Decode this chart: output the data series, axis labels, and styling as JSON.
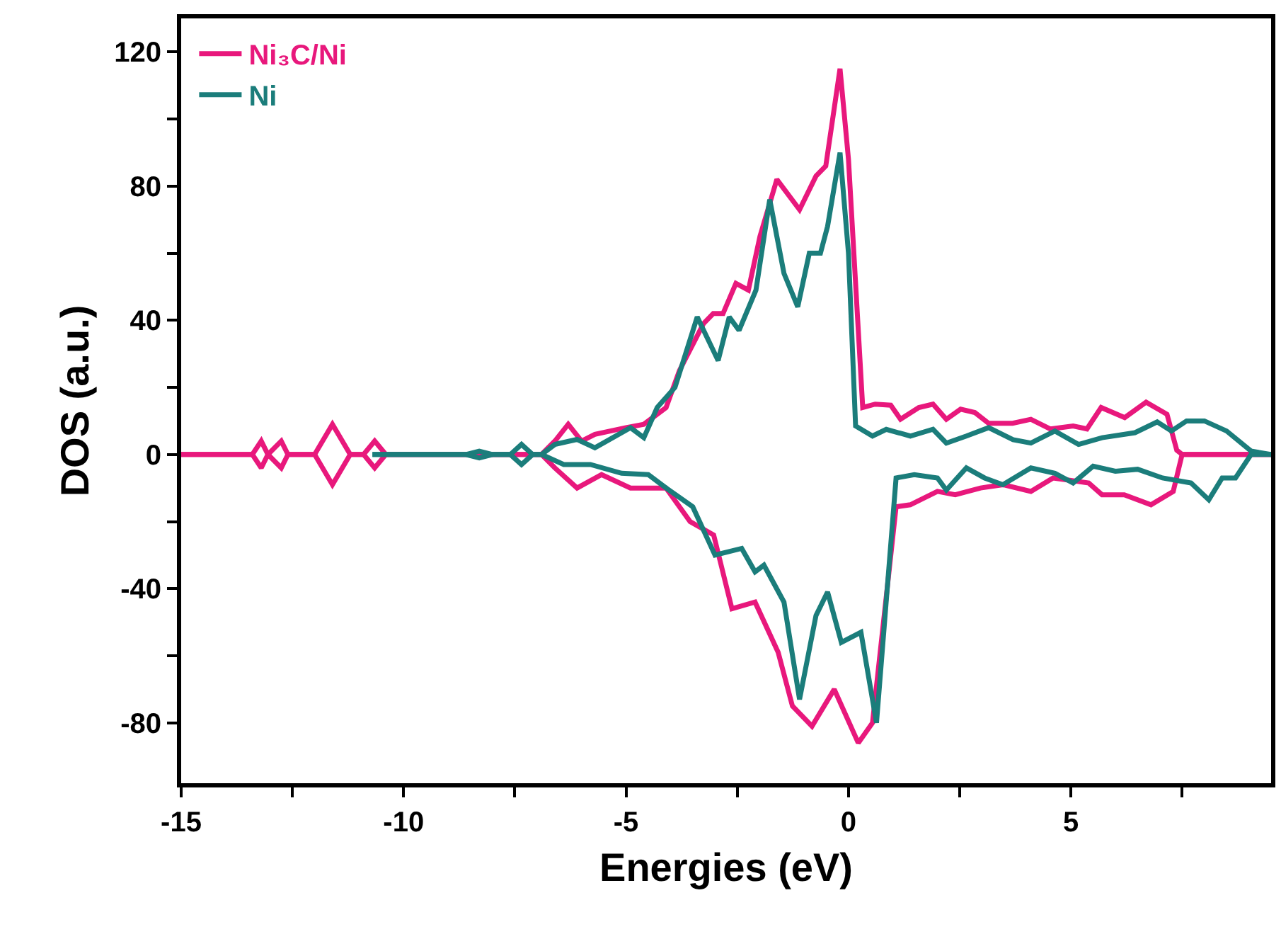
{
  "chart_data": {
    "type": "line",
    "xlabel": "Energies (eV)",
    "ylabel": "DOS (a.u.)",
    "xlim": [
      -15,
      9.5
    ],
    "ylim": [
      -98,
      130
    ],
    "xticks": [
      -15,
      {
        "value": -12.5,
        "label": null
      },
      -10,
      {
        "value": -7.5,
        "label": null
      },
      -5,
      {
        "value": -2.5,
        "label": null
      },
      0,
      {
        "value": 2.5,
        "label": null
      },
      5,
      {
        "value": 7.5,
        "label": null
      }
    ],
    "yticks": [
      -80,
      {
        "value": -60,
        "label": null
      },
      -40,
      {
        "value": -20,
        "label": null
      },
      0,
      {
        "value": 20,
        "label": null
      },
      40,
      {
        "value": 60,
        "label": null
      },
      80,
      {
        "value": 100,
        "label": null
      },
      120
    ],
    "legend": "top left",
    "line_style": "solid",
    "series": [
      {
        "name": "Ni₃C/Ni",
        "color": "#e8187c",
        "x": [
          -15,
          -13.4,
          -13.2,
          -13.05,
          -12.75,
          -12.6,
          -12.0,
          -11.6,
          -11.2,
          -10.9,
          -10.65,
          -10.4,
          -6.9,
          -6.6,
          -6.3,
          -6.0,
          -5.7,
          -5.0,
          -4.6,
          -4.1,
          -3.8,
          -3.26,
          -3.04,
          -2.82,
          -2.53,
          -2.25,
          -1.99,
          -1.61,
          -1.1,
          -0.73,
          -0.51,
          -0.19,
          0,
          0.32,
          0.6,
          0.95,
          1.17,
          1.58,
          1.9,
          2.2,
          2.52,
          2.84,
          3.15,
          3.69,
          4.1,
          4.54,
          5.05,
          5.36,
          5.68,
          6.21,
          6.69,
          7.16,
          7.38,
          7.5,
          9.5
        ],
        "values": [
          0,
          0,
          4,
          0,
          4,
          0,
          0,
          9,
          0,
          0,
          4,
          0,
          0,
          4,
          9,
          4,
          6,
          8,
          9,
          14,
          25,
          39,
          42,
          42,
          51,
          49,
          65,
          82,
          73,
          83,
          86,
          115,
          88,
          14,
          15,
          14.7,
          10.5,
          14,
          15,
          10.5,
          13.5,
          12.5,
          9.3,
          9.3,
          10.5,
          7.6,
          8.5,
          7.6,
          14,
          11,
          15.6,
          12,
          1.3,
          0,
          0
        ]
      },
      {
        "color": "#e8187c",
        "x": [
          -15,
          -13.4,
          -13.2,
          -13.05,
          -12.75,
          -12.6,
          -12.0,
          -11.6,
          -11.2,
          -10.9,
          -10.65,
          -10.4,
          -6.9,
          -6.6,
          -6.1,
          -5.55,
          -4.9,
          -4.1,
          -3.56,
          -3.03,
          -2.62,
          -2.1,
          -1.58,
          -1.26,
          -0.82,
          -0.32,
          0.22,
          0.54,
          1.07,
          1.39,
          2.0,
          2.4,
          2.97,
          3.47,
          4.1,
          4.6,
          5.4,
          5.7,
          6.2,
          6.8,
          7.3,
          7.5,
          9.5
        ],
        "values": [
          0,
          0,
          -4,
          0,
          -4,
          0,
          0,
          -9,
          0,
          0,
          -4,
          0,
          0,
          -4,
          -10,
          -6,
          -10,
          -10,
          -20,
          -24,
          -46,
          -44,
          -59,
          -75,
          -81,
          -70,
          -86,
          -80,
          -15.6,
          -15,
          -11,
          -12,
          -10,
          -9,
          -11,
          -7,
          -8.5,
          -12,
          -12,
          -15,
          -11,
          0,
          0
        ]
      },
      {
        "name": "Ni",
        "color": "#1b7d7b",
        "x": [
          -10.7,
          -8.6,
          -8.3,
          -8.0,
          -7.6,
          -7.35,
          -7.1,
          -6.9,
          -6.6,
          -6.1,
          -5.7,
          -4.9,
          -4.6,
          -4.3,
          -3.9,
          -3.4,
          -2.93,
          -2.68,
          -2.46,
          -2.08,
          -1.77,
          -1.45,
          -1.14,
          -0.88,
          -0.63,
          -0.47,
          -0.19,
          0,
          0.16,
          0.54,
          0.85,
          1.39,
          1.9,
          2.2,
          2.65,
          3.15,
          3.7,
          4.1,
          4.64,
          5.17,
          5.7,
          6.44,
          6.94,
          7.26,
          7.6,
          8.0,
          8.5,
          9.05,
          9.5
        ],
        "values": [
          0,
          0,
          1,
          0,
          0,
          3,
          0,
          0,
          3,
          4.5,
          2,
          8,
          5,
          14,
          20,
          41,
          28,
          41,
          37,
          49,
          76,
          54,
          44,
          60,
          60,
          68,
          90,
          60,
          8.5,
          5.5,
          7.5,
          5.5,
          7.5,
          3.4,
          5.5,
          8,
          4.4,
          3.4,
          7,
          3,
          5,
          6.5,
          9.7,
          7,
          10,
          10,
          7,
          1,
          0
        ]
      },
      {
        "color": "#1b7d7b",
        "x": [
          -10.7,
          -8.6,
          -8.3,
          -8.0,
          -7.6,
          -7.35,
          -7.1,
          -6.9,
          -6.4,
          -5.8,
          -5.1,
          -4.5,
          -4.1,
          -3.5,
          -3.0,
          -2.4,
          -2.1,
          -1.9,
          -1.45,
          -1.1,
          -0.73,
          -0.47,
          -0.16,
          0.28,
          0.63,
          1.07,
          1.48,
          2.0,
          2.2,
          2.65,
          3.06,
          3.47,
          4.1,
          4.64,
          5.05,
          5.5,
          6.0,
          6.5,
          7.06,
          7.7,
          8.1,
          8.4,
          8.7,
          9.05,
          9.5
        ],
        "values": [
          0,
          0,
          -1,
          0,
          0,
          -3,
          0,
          0,
          -3,
          -3,
          -5.6,
          -6,
          -10,
          -15.6,
          -30,
          -28,
          -35,
          -33,
          -44,
          -73,
          -48,
          -41,
          -56,
          -53,
          -80,
          -7,
          -6,
          -7,
          -10.6,
          -4,
          -7,
          -9,
          -4,
          -5.6,
          -8.5,
          -3.5,
          -5,
          -4.4,
          -7,
          -8.5,
          -13.5,
          -7,
          -7,
          0,
          0
        ]
      }
    ]
  }
}
